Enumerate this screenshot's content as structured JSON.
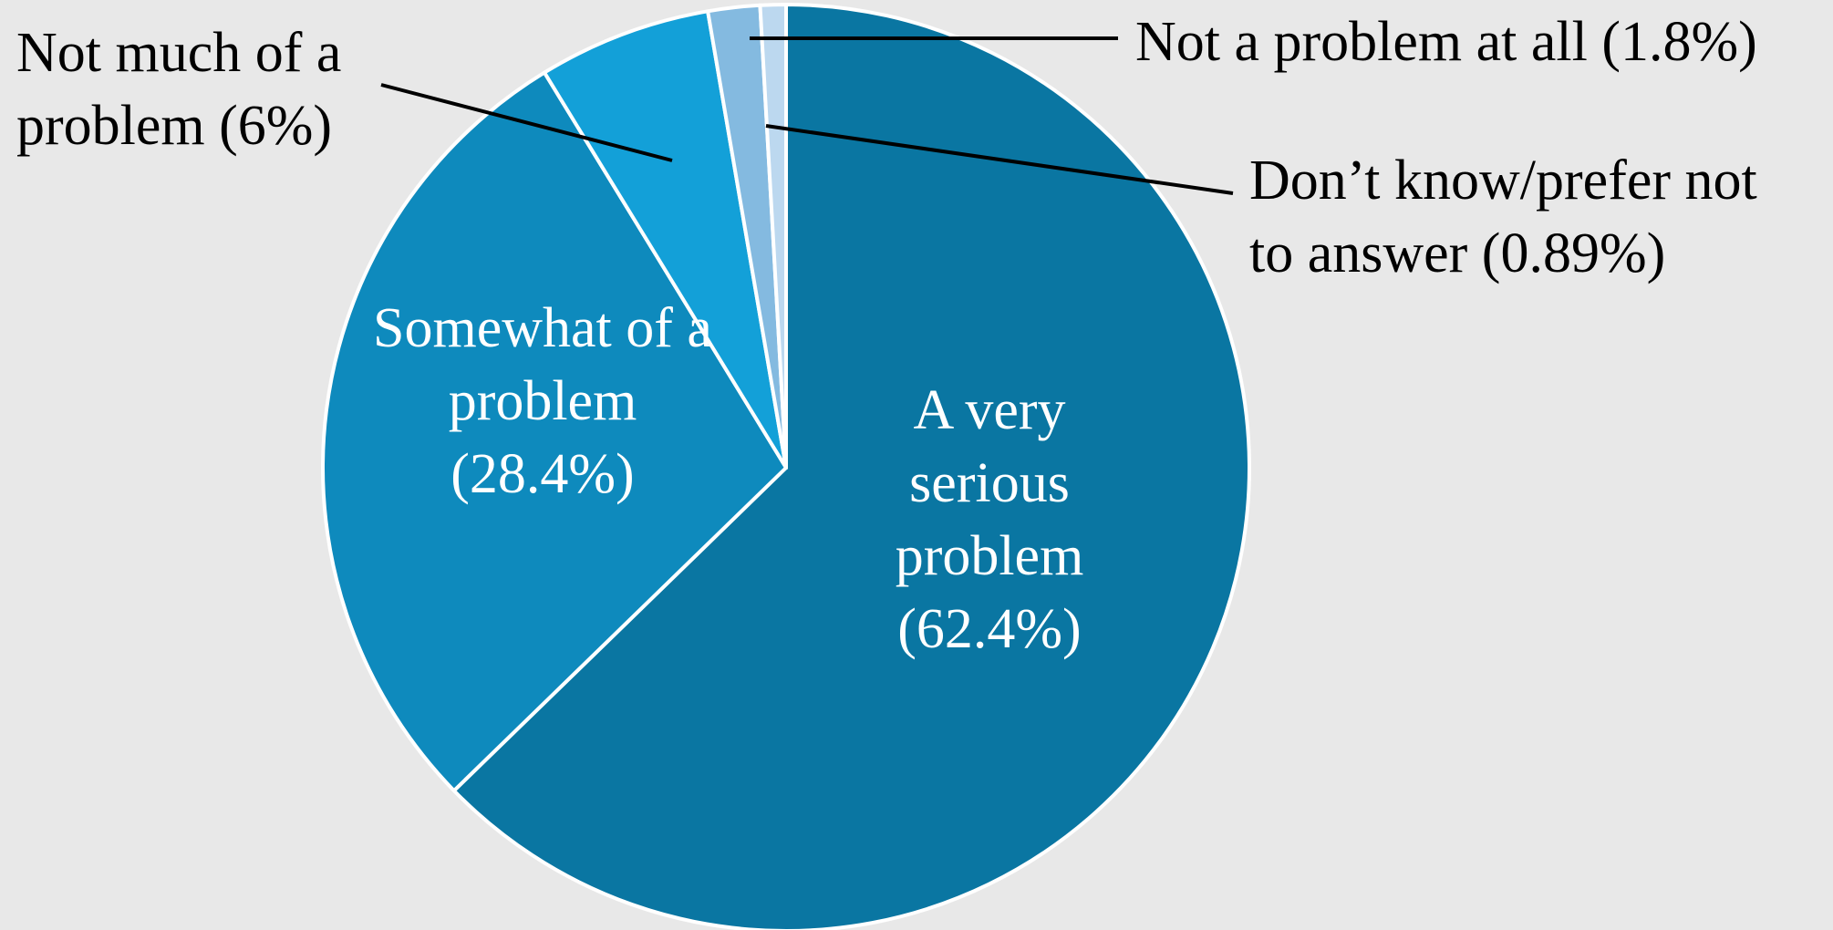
{
  "chart_data": {
    "type": "pie",
    "start_angle_deg": 0,
    "direction": "clockwise",
    "slices": [
      {
        "label_lines": [
          "A very",
          "serious",
          "problem",
          "(62.4%)"
        ],
        "value": 62.4,
        "color": "#0a76a2",
        "label_placement": "inside"
      },
      {
        "label_lines": [
          "Somewhat of a",
          "problem",
          "(28.4%)"
        ],
        "value": 28.4,
        "color": "#0e8abd",
        "label_placement": "inside"
      },
      {
        "label_lines": [
          "Not much of a",
          "problem (6%)"
        ],
        "value": 6,
        "color": "#13a0d8",
        "label_placement": "outside-left"
      },
      {
        "label_lines": [
          "Not a problem at all (1.8%)"
        ],
        "value": 1.8,
        "color": "#84bae0",
        "label_placement": "outside-right"
      },
      {
        "label_lines": [
          "Don’t know/prefer not",
          "to answer (0.89%)"
        ],
        "value": 0.89,
        "color": "#bcd8ef",
        "label_placement": "outside-right"
      }
    ]
  }
}
